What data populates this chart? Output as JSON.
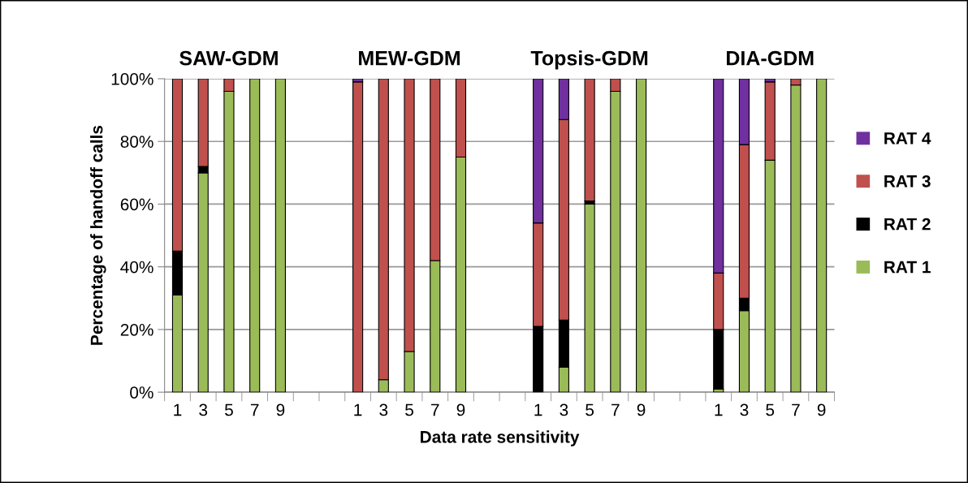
{
  "chart_data": {
    "type": "bar",
    "stacked": true,
    "xlabel": "Data rate sensitivity",
    "ylabel": "Percentage of handoff calls",
    "annotations": [
      "SAW-GDM",
      "MEW-GDM",
      "Topsis-GDM",
      "DIA-GDM"
    ],
    "categories": [
      "1",
      "3",
      "5",
      "7",
      "9",
      null,
      null,
      "1",
      "3",
      "5",
      "7",
      "9",
      null,
      null,
      "1",
      "3",
      "5",
      "7",
      "9",
      null,
      null,
      "1",
      "3",
      "5",
      "7",
      "9"
    ],
    "series": [
      {
        "name": "RAT 1",
        "color": "#9bbb59",
        "values": [
          31,
          70,
          96,
          100,
          100,
          null,
          null,
          0,
          4,
          13,
          42,
          75,
          null,
          null,
          0,
          8,
          60,
          96,
          100,
          null,
          null,
          1,
          26,
          74,
          98,
          100
        ]
      },
      {
        "name": "RAT 2",
        "color": "#000000",
        "values": [
          14,
          2,
          0,
          0,
          0,
          null,
          null,
          0,
          0,
          0,
          0,
          0,
          null,
          null,
          21,
          15,
          1,
          0,
          0,
          null,
          null,
          19,
          4,
          0,
          0,
          0
        ]
      },
      {
        "name": "RAT 3",
        "color": "#c0504d",
        "values": [
          55,
          28,
          4,
          0,
          0,
          null,
          null,
          99,
          96,
          87,
          58,
          25,
          null,
          null,
          33,
          64,
          39,
          4,
          0,
          null,
          null,
          18,
          49,
          25,
          2,
          0
        ]
      },
      {
        "name": "RAT 4",
        "color": "#7030a0",
        "values": [
          0,
          0,
          0,
          0,
          0,
          null,
          null,
          1,
          0,
          0,
          0,
          0,
          null,
          null,
          46,
          13,
          0,
          0,
          0,
          null,
          null,
          62,
          21,
          1,
          0,
          0
        ]
      }
    ],
    "ylim": [
      0,
      100
    ],
    "yticks": [
      {
        "value": 0,
        "label": "0%"
      },
      {
        "value": 20,
        "label": "20%"
      },
      {
        "value": 40,
        "label": "40%"
      },
      {
        "value": 60,
        "label": "60%"
      },
      {
        "value": 80,
        "label": "80%"
      },
      {
        "value": 100,
        "label": "100%"
      }
    ],
    "grid": "y",
    "legend": "right"
  }
}
